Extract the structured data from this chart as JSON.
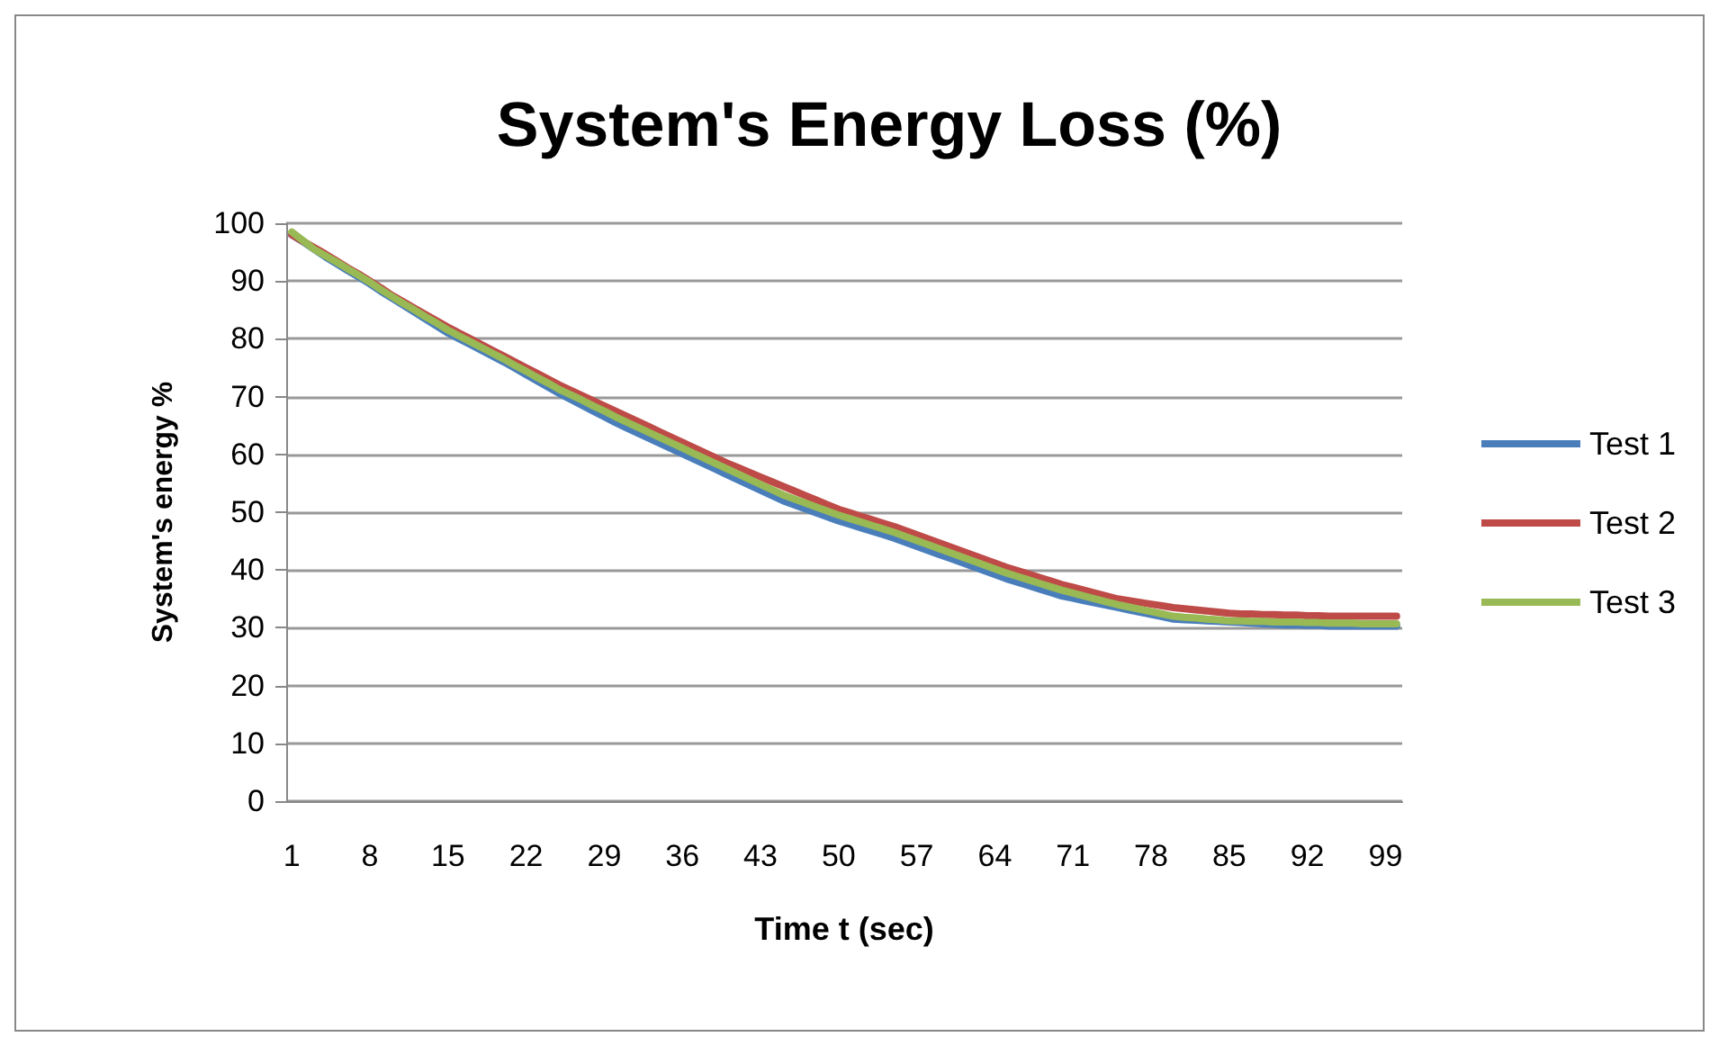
{
  "chart_data": {
    "type": "line",
    "title": "System's Energy Loss (%)",
    "xlabel": "Time t (sec)",
    "ylabel": "System's energy %",
    "categories": [
      "1",
      null,
      null,
      null,
      null,
      null,
      null,
      "8",
      null,
      null,
      null,
      null,
      null,
      null,
      "15",
      null,
      null,
      null,
      null,
      null,
      null,
      "22",
      null,
      null,
      null,
      null,
      null,
      null,
      "29",
      null,
      null,
      null,
      null,
      null,
      null,
      "36",
      null,
      null,
      null,
      null,
      null,
      null,
      "43",
      null,
      null,
      null,
      null,
      null,
      null,
      "50",
      null,
      null,
      null,
      null,
      null,
      null,
      "57",
      null,
      null,
      null,
      null,
      null,
      null,
      "64",
      null,
      null,
      null,
      null,
      null,
      null,
      "71",
      null,
      null,
      null,
      null,
      null,
      null,
      "78",
      null,
      null,
      null,
      null,
      null,
      null,
      "85",
      null,
      null,
      null,
      null,
      null,
      null,
      "92",
      null,
      null,
      null,
      null,
      null,
      null,
      "99",
      null
    ],
    "ylim": [
      0,
      100
    ],
    "yticks": [
      0,
      10,
      20,
      30,
      40,
      50,
      60,
      70,
      80,
      90,
      100
    ],
    "grid": "y",
    "legend": "right",
    "marker": "none",
    "line_style": "solid",
    "series": [
      {
        "name": "Test 1",
        "color": "#4a7ebb",
        "values": [
          98,
          96.8,
          95.5,
          94.2,
          93,
          91.8,
          90.7,
          89.5,
          88.2,
          87,
          85.8,
          84.6,
          83.4,
          82.2,
          81,
          80,
          79,
          78,
          77,
          76,
          74.9,
          73.8,
          72.7,
          71.6,
          70.5,
          69.5,
          68.5,
          67.5,
          66.5,
          65.5,
          64.6,
          63.7,
          62.8,
          61.9,
          61,
          60.1,
          59.2,
          58.3,
          57.4,
          56.5,
          55.6,
          54.7,
          53.8,
          52.9,
          52,
          51.3,
          50.6,
          49.9,
          49.2,
          48.5,
          47.9,
          47.3,
          46.7,
          46.1,
          45.5,
          44.8,
          44.1,
          43.4,
          42.7,
          42,
          41.3,
          40.6,
          39.9,
          39.2,
          38.5,
          37.9,
          37.3,
          36.7,
          36.1,
          35.5,
          35.1,
          34.7,
          34.3,
          33.9,
          33.5,
          33.1,
          32.7,
          32.3,
          31.9,
          31.5,
          31.4,
          31.3,
          31.2,
          31.1,
          31,
          30.9,
          30.8,
          30.7,
          30.6,
          30.5,
          30.5,
          30.4,
          30.4,
          30.3,
          30.3,
          30.3,
          30.3,
          30.3,
          30.3,
          30.3
        ]
      },
      {
        "name": "Test 2",
        "color": "#be4b48",
        "values": [
          98,
          96.9,
          95.8,
          94.7,
          93.5,
          92.3,
          91.2,
          90,
          88.8,
          87.5,
          86.4,
          85.3,
          84.2,
          83.1,
          82,
          81,
          80,
          79,
          78,
          77,
          76,
          75,
          74,
          73,
          72,
          71.1,
          70.2,
          69.3,
          68.4,
          67.5,
          66.6,
          65.7,
          64.8,
          63.9,
          63,
          62.1,
          61.2,
          60.3,
          59.4,
          58.5,
          57.7,
          56.9,
          56.1,
          55.3,
          54.5,
          53.7,
          52.9,
          52.1,
          51.3,
          50.5,
          49.9,
          49.3,
          48.7,
          48.1,
          47.5,
          46.8,
          46.1,
          45.4,
          44.7,
          44,
          43.3,
          42.6,
          41.9,
          41.2,
          40.5,
          39.9,
          39.3,
          38.7,
          38.1,
          37.5,
          37,
          36.5,
          36,
          35.5,
          35,
          34.7,
          34.4,
          34.1,
          33.8,
          33.5,
          33.3,
          33.1,
          32.9,
          32.7,
          32.5,
          32.4,
          32.4,
          32.3,
          32.3,
          32.2,
          32.2,
          32.1,
          32.1,
          32,
          32,
          32,
          32,
          32,
          32,
          32
        ]
      },
      {
        "name": "Test 3",
        "color": "#98b954",
        "values": [
          98.5,
          97,
          95.5,
          94.4,
          93.3,
          92.1,
          91,
          89.8,
          88.5,
          87.3,
          86.1,
          85,
          83.8,
          82.7,
          81.5,
          80.5,
          79.5,
          78.5,
          77.5,
          76.5,
          75.4,
          74.4,
          73.3,
          72.3,
          71.2,
          70.3,
          69.4,
          68.4,
          67.5,
          66.5,
          65.6,
          64.7,
          63.8,
          62.9,
          62,
          61.1,
          60.2,
          59.3,
          58.4,
          57.5,
          56.6,
          55.7,
          54.8,
          53.9,
          53,
          52.3,
          51.6,
          50.9,
          50.2,
          49.5,
          48.9,
          48.3,
          47.7,
          47.1,
          46.5,
          45.8,
          45.1,
          44.4,
          43.7,
          43,
          42.3,
          41.6,
          40.9,
          40.2,
          39.5,
          38.9,
          38.3,
          37.7,
          37.1,
          36.5,
          36,
          35.5,
          35,
          34.5,
          34,
          33.6,
          33.2,
          32.8,
          32.4,
          32,
          31.8,
          31.7,
          31.5,
          31.4,
          31.2,
          31.2,
          31.1,
          31.1,
          31,
          31,
          31,
          30.9,
          30.9,
          30.8,
          30.8,
          30.8,
          30.7,
          30.7,
          30.7,
          30.7
        ]
      }
    ]
  }
}
